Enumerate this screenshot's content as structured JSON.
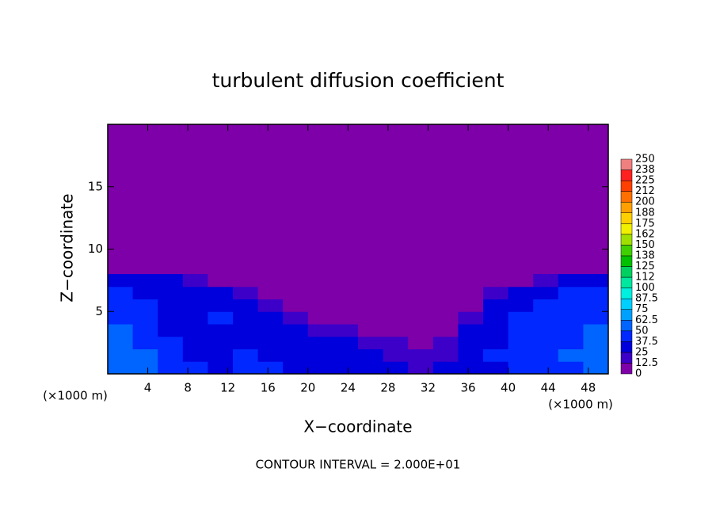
{
  "chart_data": {
    "type": "heatmap",
    "title": "turbulent diffusion coefficient",
    "x_label": "X−coordinate",
    "y_label": "Z−coordinate",
    "x_unit_left": "(×1000 m)",
    "x_unit_right": "(×1000 m)",
    "footnote": "CONTOUR INTERVAL = 2.000E+01",
    "xlim": [
      0,
      50
    ],
    "ylim": [
      0,
      20
    ],
    "xticks": [
      4,
      8,
      12,
      16,
      20,
      24,
      28,
      32,
      36,
      40,
      44,
      48
    ],
    "yticks": [
      5,
      10,
      15
    ],
    "x_edges": [
      0,
      2.5,
      5,
      7.5,
      10,
      12.5,
      15,
      17.5,
      20,
      22.5,
      25,
      27.5,
      30,
      32.5,
      35,
      37.5,
      40,
      42.5,
      45,
      47.5,
      50
    ],
    "y_edges": [
      0,
      1,
      2,
      3,
      4,
      5,
      6,
      7,
      8
    ],
    "values": [
      [
        62,
        55,
        45,
        40,
        35,
        40,
        40,
        35,
        35,
        30,
        35,
        30,
        20,
        30,
        35,
        35,
        40,
        40,
        45,
        55
      ],
      [
        60,
        50,
        40,
        35,
        35,
        40,
        35,
        30,
        30,
        30,
        25,
        20,
        15,
        20,
        35,
        40,
        40,
        45,
        50,
        55
      ],
      [
        55,
        45,
        40,
        35,
        35,
        35,
        35,
        30,
        25,
        25,
        20,
        15,
        10,
        15,
        30,
        35,
        40,
        45,
        45,
        50
      ],
      [
        50,
        45,
        35,
        35,
        35,
        35,
        30,
        25,
        20,
        15,
        10,
        5,
        5,
        10,
        25,
        35,
        40,
        45,
        45,
        50
      ],
      [
        45,
        40,
        35,
        35,
        40,
        35,
        25,
        15,
        10,
        5,
        5,
        0,
        0,
        5,
        15,
        35,
        40,
        45,
        45,
        45
      ],
      [
        40,
        40,
        35,
        35,
        35,
        30,
        15,
        5,
        5,
        0,
        0,
        0,
        0,
        0,
        10,
        30,
        35,
        40,
        40,
        40
      ],
      [
        40,
        35,
        35,
        30,
        30,
        20,
        5,
        0,
        0,
        0,
        0,
        0,
        0,
        0,
        5,
        20,
        25,
        35,
        40,
        40
      ],
      [
        35,
        30,
        25,
        15,
        5,
        0,
        0,
        0,
        0,
        0,
        0,
        0,
        0,
        0,
        0,
        5,
        10,
        20,
        35,
        30
      ]
    ],
    "colorbar": {
      "levels": [
        0,
        12.5,
        25,
        37.5,
        50,
        62.5,
        75,
        87.5,
        100,
        112,
        125,
        138,
        150,
        162,
        175,
        188,
        200,
        212,
        225,
        238,
        250
      ],
      "colors": [
        "#7e00a8",
        "#3c00c8",
        "#0000dc",
        "#0028ff",
        "#0064ff",
        "#00a0ff",
        "#00d0ff",
        "#00f0e0",
        "#00e8a0",
        "#00d060",
        "#00c000",
        "#40d000",
        "#a0e000",
        "#f0f000",
        "#ffd000",
        "#ffa000",
        "#ff7000",
        "#ff4000",
        "#ff2020",
        "#f08080"
      ]
    }
  }
}
